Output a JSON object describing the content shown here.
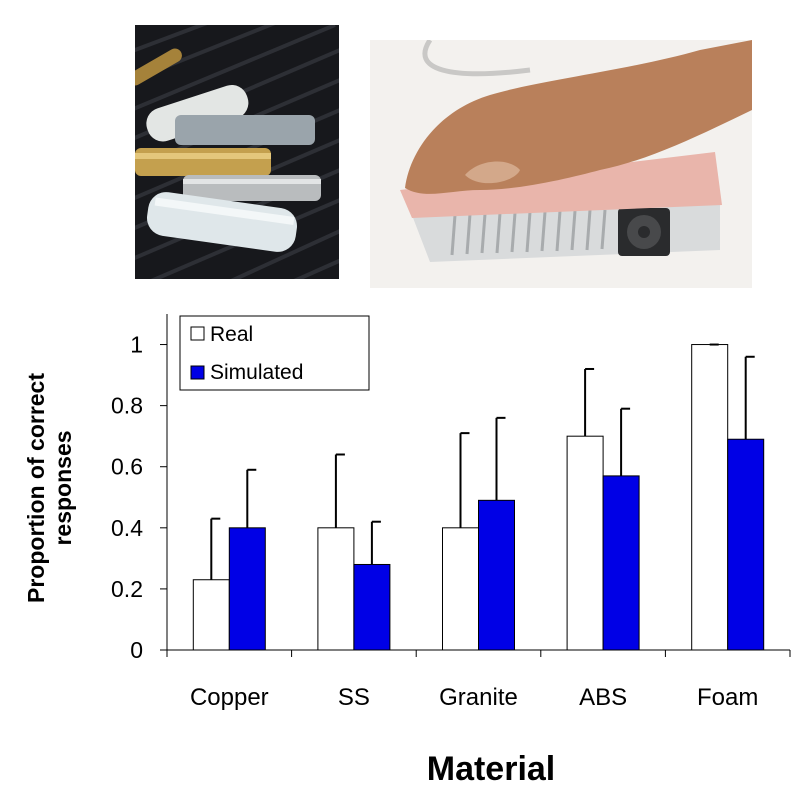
{
  "photos": {
    "left": {
      "icon": "material-cylinders-photo",
      "subject": "material-samples"
    },
    "right": {
      "icon": "hand-on-thermal-display-photo",
      "subject": "thermal-display"
    }
  },
  "chart_data": {
    "type": "bar",
    "title": "",
    "xlabel": "Material",
    "ylabel": "Proportion of correct responses",
    "categories": [
      "Copper",
      "SS",
      "Granite",
      "ABS",
      "Foam"
    ],
    "ylim": [
      0,
      1.1
    ],
    "yticks": [
      0,
      0.2,
      0.4,
      0.6,
      0.8,
      1
    ],
    "ytick_labels": [
      "0",
      "0.2",
      "0.4",
      "0.6",
      "0.8",
      "1"
    ],
    "grid": false,
    "legend_position": "top-left",
    "series": [
      {
        "name": "Real",
        "color": "#ffffff",
        "edge": "#000000",
        "values": [
          0.23,
          0.4,
          0.4,
          0.7,
          1.0
        ],
        "error_upper": [
          0.43,
          0.64,
          0.71,
          0.92,
          1.0
        ]
      },
      {
        "name": "Simulated",
        "color": "#0000e6",
        "edge": "#000000",
        "values": [
          0.4,
          0.28,
          0.49,
          0.57,
          0.69
        ],
        "error_upper": [
          0.59,
          0.42,
          0.76,
          0.79,
          0.96
        ]
      }
    ]
  }
}
